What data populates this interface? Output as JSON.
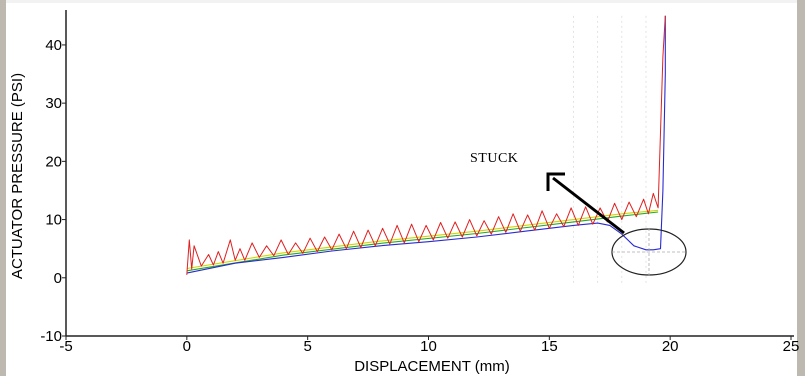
{
  "chart_data": {
    "type": "line",
    "xlabel": "DISPLACEMENT (mm)",
    "ylabel": "ACTUATOR PRESSURE (PSI)",
    "xlim": [
      -5,
      25
    ],
    "ylim": [
      -10,
      46
    ],
    "x_ticks": [
      "-5",
      "0",
      "5",
      "10",
      "15",
      "20",
      "25"
    ],
    "y_ticks": [
      "-10",
      "0",
      "10",
      "20",
      "30",
      "40"
    ],
    "x_tick_values": [
      -5,
      0,
      5,
      10,
      15,
      20,
      25
    ],
    "y_tick_values": [
      -10,
      0,
      10,
      20,
      30,
      40
    ],
    "annotations": [
      {
        "text": "STUCK",
        "x": 14.6,
        "y": 19.5
      }
    ],
    "series": [
      {
        "color": "#e02020",
        "x": [
          0.0,
          0.1,
          0.2,
          0.3,
          0.6,
          0.9,
          1.1,
          1.3,
          1.5,
          1.8,
          2.0,
          2.2,
          2.4,
          2.7,
          3.0,
          3.3,
          3.6,
          3.9,
          4.2,
          4.5,
          4.8,
          5.1,
          5.4,
          5.7,
          6.0,
          6.3,
          6.6,
          6.9,
          7.2,
          7.5,
          7.8,
          8.1,
          8.4,
          8.7,
          9.0,
          9.3,
          9.6,
          9.9,
          10.2,
          10.5,
          10.8,
          11.1,
          11.4,
          11.7,
          12.0,
          12.3,
          12.6,
          12.9,
          13.2,
          13.5,
          13.8,
          14.1,
          14.4,
          14.7,
          15.0,
          15.3,
          15.6,
          15.9,
          16.2,
          16.5,
          16.8,
          17.1,
          17.4,
          17.7,
          18.0,
          18.3,
          18.6,
          18.9,
          19.1,
          19.3,
          19.5,
          19.6,
          19.7,
          19.8
        ],
        "y": [
          0.5,
          6.5,
          1.5,
          5.5,
          2.0,
          4.0,
          2.2,
          4.5,
          2.5,
          6.5,
          3.0,
          5.0,
          3.0,
          6.0,
          3.5,
          5.5,
          3.8,
          6.5,
          4.0,
          6.0,
          4.2,
          6.8,
          4.5,
          7.0,
          4.8,
          7.5,
          5.0,
          8.0,
          5.2,
          8.2,
          5.5,
          8.5,
          5.8,
          9.0,
          6.0,
          9.2,
          6.2,
          9.0,
          6.5,
          9.5,
          6.8,
          9.6,
          7.0,
          10.0,
          7.2,
          9.8,
          7.5,
          10.5,
          7.8,
          11.0,
          8.0,
          10.8,
          8.2,
          11.5,
          8.5,
          11.0,
          8.8,
          12.0,
          9.0,
          12.2,
          9.2,
          12.0,
          9.6,
          12.8,
          10.0,
          13.0,
          10.5,
          13.5,
          11.0,
          14.5,
          12.0,
          25.0,
          38.0,
          45.0
        ]
      },
      {
        "color": "#2a2ad0",
        "x": [
          0.0,
          2.0,
          4.0,
          6.0,
          8.0,
          10.0,
          12.0,
          14.0,
          16.0,
          17.0,
          17.5,
          18.0,
          18.5,
          19.0,
          19.3,
          19.6,
          19.7,
          19.8,
          19.8
        ],
        "y": [
          0.8,
          2.5,
          3.5,
          4.6,
          5.5,
          6.2,
          7.0,
          8.0,
          9.0,
          9.4,
          9.0,
          7.5,
          5.5,
          4.8,
          4.8,
          5.0,
          15.0,
          35.0,
          45.0
        ]
      },
      {
        "color": "#28a828",
        "x": [
          0.0,
          4.0,
          8.0,
          12.0,
          16.0,
          18.0,
          19.5
        ],
        "y": [
          1.2,
          3.9,
          5.9,
          7.6,
          9.6,
          10.6,
          11.3
        ]
      },
      {
        "color": "#d4d400",
        "x": [
          0.0,
          4.0,
          8.0,
          12.0,
          16.0,
          18.0,
          19.5
        ],
        "y": [
          1.6,
          4.3,
          6.3,
          8.0,
          10.0,
          11.0,
          11.6
        ]
      }
    ]
  }
}
